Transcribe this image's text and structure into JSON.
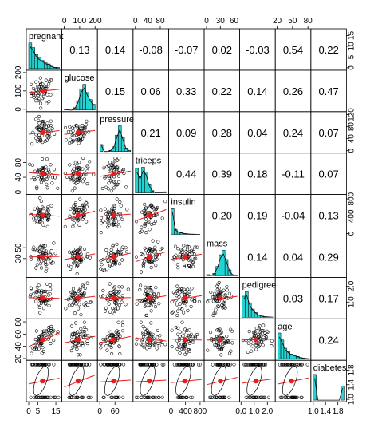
{
  "chart_data": {
    "type": "scatter-matrix",
    "title": "",
    "variables": [
      "pregnant",
      "glucose",
      "pressure",
      "triceps",
      "insulin",
      "mass",
      "pedigree",
      "age",
      "diabetes"
    ],
    "correlations": [
      [
        "",
        "0.13",
        "0.14",
        "-0.08",
        "-0.07",
        "0.02",
        "-0.03",
        "0.54",
        "0.22"
      ],
      [
        "",
        "",
        "0.15",
        "0.06",
        "0.33",
        "0.22",
        "0.14",
        "0.26",
        "0.47"
      ],
      [
        "",
        "",
        "",
        "0.21",
        "0.09",
        "0.28",
        "0.04",
        "0.24",
        "0.07"
      ],
      [
        "",
        "",
        "",
        "",
        "0.44",
        "0.39",
        "0.18",
        "-0.11",
        "0.07"
      ],
      [
        "",
        "",
        "",
        "",
        "",
        "0.20",
        "0.19",
        "-0.04",
        "0.13"
      ],
      [
        "",
        "",
        "",
        "",
        "",
        "",
        "0.14",
        "0.04",
        "0.29"
      ],
      [
        "",
        "",
        "",
        "",
        "",
        "",
        "",
        "0.03",
        "0.17"
      ],
      [
        "",
        "",
        "",
        "",
        "",
        "",
        "",
        "",
        "0.24"
      ]
    ],
    "ranges": [
      [
        0,
        17
      ],
      [
        0,
        200
      ],
      [
        0,
        122
      ],
      [
        0,
        99
      ],
      [
        0,
        846
      ],
      [
        0,
        67
      ],
      [
        0.08,
        2.42
      ],
      [
        21,
        81
      ],
      [
        1,
        2
      ]
    ],
    "hist_bins": [
      [
        22,
        18,
        12,
        9,
        7,
        5,
        4,
        2,
        1,
        1
      ],
      [
        1,
        0,
        0,
        2,
        8,
        18,
        22,
        15,
        9,
        5
      ],
      [
        6,
        0,
        0,
        1,
        4,
        14,
        22,
        12,
        3,
        1
      ],
      [
        21,
        14,
        22,
        18,
        7,
        2,
        0,
        0,
        0,
        1
      ],
      [
        30,
        6,
        3,
        2,
        1,
        0.5,
        0.3,
        0.2,
        0.1,
        0.1
      ],
      [
        1,
        0,
        2,
        8,
        18,
        22,
        14,
        5,
        1,
        0.5
      ],
      [
        18,
        22,
        12,
        7,
        4,
        2,
        1,
        0.5,
        0.3,
        0.2
      ],
      [
        22,
        16,
        9,
        6,
        4,
        3,
        2,
        1,
        0.5,
        0.2
      ],
      [
        22,
        0,
        0,
        0,
        0,
        0,
        0,
        0,
        0,
        12
      ]
    ],
    "top_axis": {
      "2": {
        "ticks": [
          "0",
          "100",
          "200"
        ],
        "values": [
          0,
          100,
          200
        ]
      },
      "4": {
        "ticks": [
          "0",
          "40",
          "80"
        ],
        "values": [
          0,
          40,
          80
        ]
      },
      "6": {
        "ticks": [
          "0",
          "30",
          "60"
        ],
        "values": [
          0,
          30,
          60
        ]
      },
      "8": {
        "ticks": [
          "20",
          "50",
          "80"
        ],
        "values": [
          20,
          50,
          80
        ]
      }
    },
    "bottom_axis": {
      "1": {
        "ticks": [
          "0",
          "5",
          "15"
        ],
        "values": [
          0,
          5,
          15
        ]
      },
      "3": {
        "ticks": [
          "0",
          "60"
        ],
        "values": [
          0,
          60
        ]
      },
      "5": {
        "ticks": [
          "0",
          "400",
          "800"
        ],
        "values": [
          0,
          400,
          800
        ]
      },
      "7": {
        "ticks": [
          "0.0",
          "1.0",
          "2.0"
        ],
        "values": [
          0,
          1,
          2
        ]
      },
      "9": {
        "ticks": [
          "1.0",
          "1.4",
          "1.8"
        ],
        "values": [
          1,
          1.4,
          1.8
        ]
      }
    },
    "left_axis": {
      "2": {
        "ticks": [
          "0",
          "100",
          "200"
        ],
        "values": [
          0,
          100,
          200
        ]
      },
      "4": {
        "ticks": [
          "0",
          "40",
          "80"
        ],
        "values": [
          0,
          40,
          80
        ]
      },
      "6": {
        "ticks": [
          "30",
          "50"
        ],
        "values": [
          30,
          50
        ]
      },
      "8": {
        "ticks": [
          "20",
          "40",
          "60",
          "80"
        ],
        "values": [
          20,
          40,
          60,
          80
        ]
      }
    },
    "right_axis": {
      "1": {
        "ticks": [
          "0",
          "5",
          "10",
          "15"
        ],
        "values": [
          0,
          5,
          10,
          15
        ]
      },
      "3": {
        "ticks": [
          "0",
          "40",
          "80",
          "120"
        ],
        "values": [
          0,
          40,
          80,
          120
        ]
      },
      "5": {
        "ticks": [
          "0",
          "400",
          "800"
        ],
        "values": [
          0,
          400,
          800
        ]
      },
      "7": {
        "ticks": [
          "1.0",
          "2.0"
        ],
        "values": [
          1,
          2
        ]
      },
      "9": {
        "ticks": [
          "1.0",
          "1.4",
          "1.8"
        ],
        "values": [
          1,
          1.4,
          1.8
        ]
      }
    },
    "colors": {
      "hist": "#22d3d3",
      "point": "#000000",
      "smooth": "#e81c1c",
      "center": "#e81c1c"
    }
  }
}
